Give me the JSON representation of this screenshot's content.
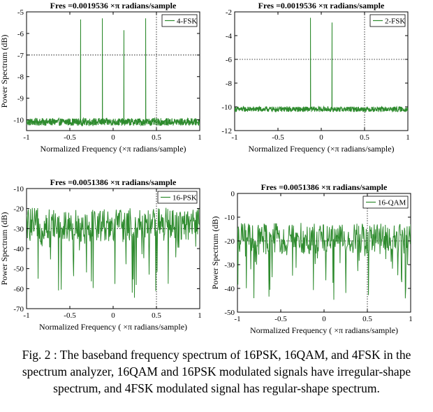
{
  "caption": "Fig.  2 : The baseband frequency spectrum of 16PSK, 16QAM, and 4FSK in the spectrum analyzer, 16QAM and 16PSK modulated signals have irregular-shape spectrum, and 4FSK modulated signal has regular-shape spectrum.",
  "colors": {
    "line": "#2e8b2e",
    "grid": "#000000"
  },
  "chart_data": [
    {
      "type": "line",
      "title": "Fres =0.0019536 ×π radians/sample",
      "xlabel": "Normalized Frequency  (×π radians/sample)",
      "ylabel": "Power Spectrum (dB)",
      "xlim": [
        -1,
        1
      ],
      "ylim": [
        -10.5,
        -5
      ],
      "xticks": [
        -1,
        -0.5,
        0,
        0.5,
        1
      ],
      "xtick_labels": [
        "-1",
        "-0.5",
        "0",
        "0.5",
        "1"
      ],
      "yticks": [
        -10,
        -9,
        -8,
        -7,
        -6,
        -5
      ],
      "ytick_labels": [
        "-10",
        "-9",
        "-8",
        "-7",
        "-6",
        "-5"
      ],
      "grid": "dotted",
      "legend": "top-right",
      "series": [
        {
          "name": "4-FSK",
          "noise_floor": -10.1,
          "noise_spread": 0.35,
          "peaks": [
            {
              "x": -0.375,
              "y": -5.35
            },
            {
              "x": -0.125,
              "y": -5.3
            },
            {
              "x": 0.125,
              "y": -5.85
            },
            {
              "x": 0.375,
              "y": -5.3
            }
          ]
        }
      ]
    },
    {
      "type": "line",
      "title": "Fres =0.0019536 ×π radians/sample",
      "xlabel": "Normalized Frequency  (×π radians/sample)",
      "ylabel": "",
      "xlim": [
        -1,
        1
      ],
      "ylim": [
        -12,
        -2
      ],
      "xticks": [
        -1,
        -0.5,
        0,
        0.5,
        1
      ],
      "xtick_labels": [
        "-1",
        "-0.5",
        "0",
        "0.5",
        "1"
      ],
      "yticks": [
        -12,
        -10,
        -8,
        -6,
        -4,
        -2
      ],
      "ytick_labels": [
        "-12",
        "-10",
        "-8",
        "-6",
        "-4",
        "-2"
      ],
      "grid": "dotted",
      "legend": "top-right",
      "series": [
        {
          "name": "2-FSK",
          "noise_floor": -10.2,
          "noise_spread": 0.45,
          "peaks": [
            {
              "x": -0.125,
              "y": -2.5
            },
            {
              "x": 0.125,
              "y": -2.9
            }
          ]
        }
      ]
    },
    {
      "type": "line",
      "title": "Fres =0.0051386 ×π radians/sample",
      "xlabel": "Normalized Frequency  ( ×π radians/sample)",
      "ylabel": "Power Spectrum (dB)",
      "xlim": [
        -1,
        1
      ],
      "ylim": [
        -70,
        -10
      ],
      "xticks": [
        -1,
        -0.5,
        0,
        0.5,
        1
      ],
      "xtick_labels": [
        "-1",
        "-0.5",
        "0",
        "0.5",
        "1"
      ],
      "yticks": [
        -70,
        -60,
        -50,
        -40,
        -30,
        -20,
        -10
      ],
      "ytick_labels": [
        "-70",
        "-60",
        "-50",
        "-40",
        "-30",
        "-20",
        "-10"
      ],
      "grid": "dotted",
      "legend": "top-right",
      "series": [
        {
          "name": "16-PSK",
          "mean": -28,
          "spread": 14,
          "floor": -65,
          "ceil": -18
        }
      ]
    },
    {
      "type": "line",
      "title": "Fres =0.0051386 ×π radians/sample",
      "xlabel": "Normalized Frequency  ( ×π radians/sample)",
      "ylabel": "Power Spectrum (dB)",
      "xlim": [
        -1,
        1
      ],
      "ylim": [
        -50,
        0
      ],
      "xticks": [
        -1,
        -0.5,
        0,
        0.5,
        1
      ],
      "xtick_labels": [
        "-1",
        "-0.5",
        "0",
        "0.5",
        "1"
      ],
      "yticks": [
        -50,
        -40,
        -30,
        -20,
        -10,
        0
      ],
      "ytick_labels": [
        "-50",
        "-40",
        "-30",
        "-20",
        "-10",
        "0"
      ],
      "grid": "dotted",
      "legend": "top-right",
      "series": [
        {
          "name": "16-QAM",
          "mean": -19,
          "spread": 11,
          "floor": -45,
          "ceil": -10
        }
      ]
    }
  ]
}
